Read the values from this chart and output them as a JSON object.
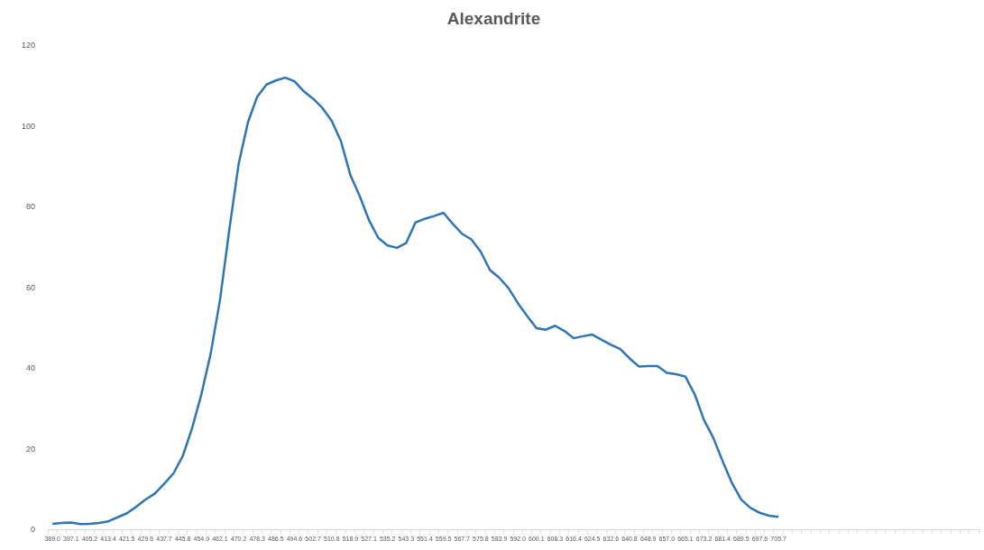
{
  "chart_data": {
    "type": "line",
    "title": "Alexandrite",
    "categories": [
      "389.0",
      null,
      "397.1",
      null,
      "405.2",
      null,
      "413.4",
      null,
      "421.5",
      null,
      "429.6",
      null,
      "437.7",
      null,
      "445.8",
      null,
      "454.0",
      null,
      "462.1",
      null,
      "470.2",
      null,
      "478.3",
      null,
      "486.5",
      null,
      "494.6",
      null,
      "502.7",
      null,
      "510.8",
      null,
      "518.9",
      null,
      "527.1",
      null,
      "535.2",
      null,
      "543.3",
      null,
      "551.4",
      null,
      "559.5",
      null,
      "567.7",
      null,
      "575.8",
      null,
      "583.9",
      null,
      "592.0",
      null,
      "600.1",
      null,
      "608.3",
      null,
      "616.4",
      null,
      "624.5",
      null,
      "632.6",
      null,
      "640.8",
      null,
      "648.9",
      null,
      "657.0",
      null,
      "665.1",
      null,
      "673.2",
      null,
      "681.4",
      null,
      "689.5",
      null,
      "697.6",
      null,
      "705.7",
      null,
      null,
      null,
      null,
      null,
      null,
      null,
      null,
      null,
      null,
      null,
      null,
      null,
      null,
      null,
      null,
      null,
      null,
      null,
      null,
      null
    ],
    "series": [
      {
        "color": "#2e75b6",
        "values": [
          1.5,
          1.7,
          1.8,
          1.4,
          1.5,
          1.7,
          2.1,
          3.1,
          4.1,
          5.7,
          7.5,
          9.0,
          11.4,
          14.0,
          18.3,
          25.2,
          33.6,
          43.7,
          57,
          74.4,
          90.7,
          101,
          107.4,
          110.4,
          111.4,
          112.1,
          111.2,
          108.7,
          106.9,
          104.6,
          101.4,
          96.3,
          88,
          82.8,
          76.8,
          72.4,
          70.5,
          69.9,
          71.1,
          76.2,
          77.1,
          77.8,
          78.6,
          75.9,
          73.4,
          72,
          69,
          64.4,
          62.5,
          59.9,
          56.2,
          53,
          50,
          49.6,
          50.6,
          49.3,
          47.5,
          48,
          48.4,
          47.1,
          45.9,
          44.8,
          42.5,
          40.5,
          40.6,
          40.6,
          38.9,
          38.6,
          38,
          33.6,
          27.2,
          22.8,
          17,
          11.6,
          7.5,
          5.4,
          4.2,
          3.5,
          3.2,
          null,
          null,
          null,
          null,
          null,
          null,
          null,
          null,
          null,
          null,
          null,
          null,
          null,
          null,
          null,
          null,
          null,
          null,
          null,
          null,
          null
        ]
      }
    ],
    "ylim": [
      0,
      120
    ],
    "yticks": [
      0,
      20,
      40,
      60,
      80,
      100,
      120
    ],
    "grid": false,
    "legend": false,
    "marker": "none",
    "line_style": "solid"
  }
}
